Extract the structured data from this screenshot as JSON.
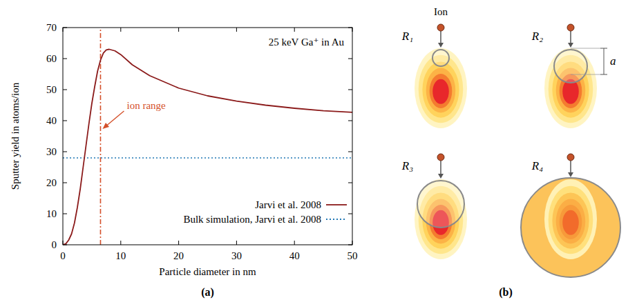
{
  "chart_data": {
    "type": "line",
    "annotation": "25 keV Ga⁺ in Au",
    "x_label": "Particle diameter in nm",
    "y_label": "Sputter yield in atoms/ion",
    "panel": "(a)",
    "xlim": [
      0,
      50
    ],
    "ylim": [
      0,
      70
    ],
    "xticks": [
      0,
      10,
      20,
      30,
      40,
      50
    ],
    "yticks": [
      0,
      10,
      20,
      30,
      40,
      50,
      60,
      70
    ],
    "legend": "lower right",
    "series": [
      {
        "name": "Jarvi et al. 2008",
        "color": "#8b1a1a",
        "line_style": "solid",
        "x": [
          0,
          0.5,
          1,
          1.5,
          2,
          2.5,
          3,
          3.5,
          4,
          4.5,
          5,
          5.5,
          6,
          6.5,
          7,
          7.5,
          8,
          9,
          10,
          12,
          15,
          20,
          25,
          30,
          35,
          40,
          45,
          50
        ],
        "values": [
          0,
          0.3,
          1.5,
          3.5,
          7,
          12,
          18,
          25,
          32,
          39,
          45.5,
          51,
          56,
          59.5,
          61.8,
          62.8,
          63,
          62.5,
          61.3,
          58,
          54.5,
          50.5,
          48,
          46.3,
          45,
          44,
          43.2,
          42.7
        ]
      },
      {
        "name": "Bulk simulation, Jarvi et al. 2008",
        "color": "#1f77b4",
        "line_style": "dotted",
        "x": [
          0,
          50
        ],
        "values": [
          28,
          28
        ]
      }
    ],
    "reference_lines": [
      {
        "x": 6.5,
        "label": "ion range",
        "color": "#d4502a",
        "line_style": "dashdot"
      }
    ]
  },
  "diagram": {
    "panel": "(b)",
    "ion_label": "Ion",
    "dimension_label": "a",
    "particles": [
      {
        "label": "R₁"
      },
      {
        "label": "R₂"
      },
      {
        "label": "R₃"
      },
      {
        "label": "R₄"
      }
    ]
  }
}
